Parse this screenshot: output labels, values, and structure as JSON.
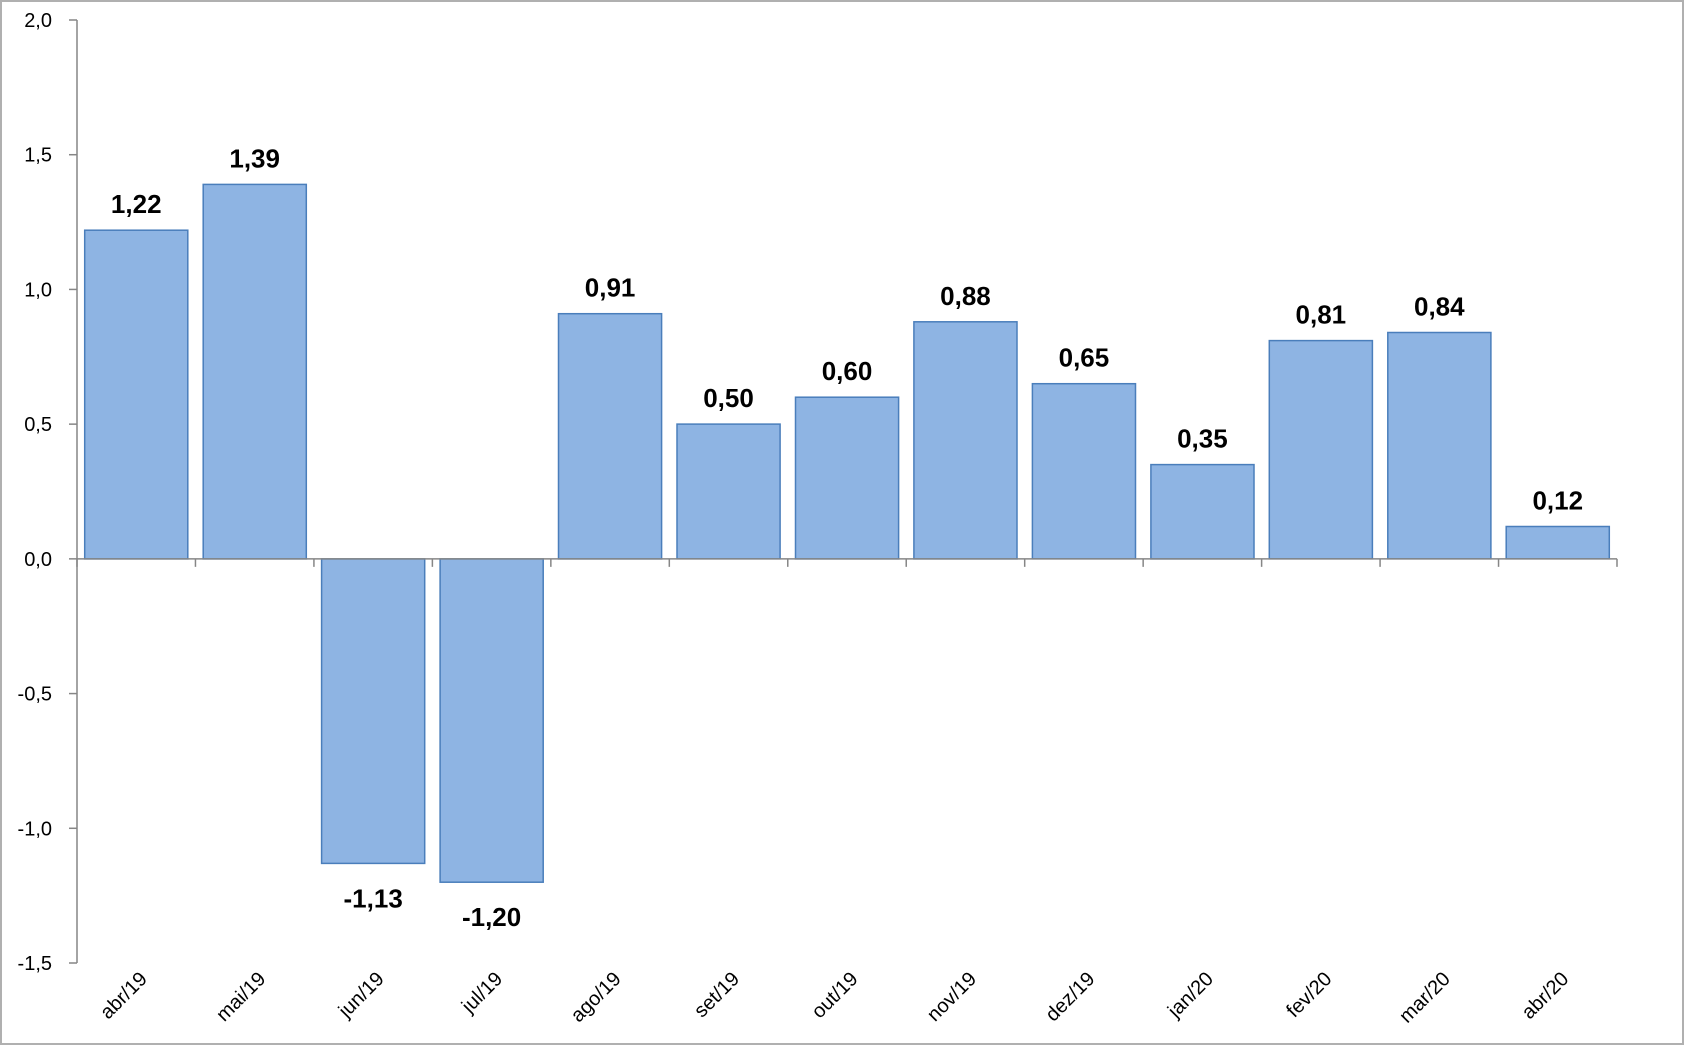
{
  "chart_data": {
    "type": "bar",
    "title": "",
    "xlabel": "",
    "ylabel": "",
    "categories": [
      "abr/19",
      "mai/19",
      "jun/19",
      "jul/19",
      "ago/19",
      "set/19",
      "out/19",
      "nov/19",
      "dez/19",
      "jan/20",
      "fev/20",
      "mar/20",
      "abr/20"
    ],
    "values": [
      1.22,
      1.39,
      -1.13,
      -1.2,
      0.91,
      0.5,
      0.6,
      0.88,
      0.65,
      0.35,
      0.81,
      0.84,
      0.12
    ],
    "value_labels": [
      "1,22",
      "1,39",
      "-1,13",
      "-1,20",
      "0,91",
      "0,50",
      "0,60",
      "0,88",
      "0,65",
      "0,35",
      "0,81",
      "0,84",
      "0,12"
    ],
    "ylim": [
      -1.5,
      2.0
    ],
    "yticks": [
      2.0,
      1.5,
      1.0,
      0.5,
      0.0,
      -0.5,
      -1.0,
      -1.5
    ],
    "ytick_labels": [
      "2,0",
      "1,5",
      "1,0",
      "0,5",
      "0,0",
      "-0,5",
      "-1,0",
      "-1,5"
    ],
    "grid": false,
    "legend": "none",
    "colors": {
      "bar_fill": "#8eb4e3",
      "bar_stroke": "#4a7ebb",
      "axis": "#868686"
    }
  }
}
